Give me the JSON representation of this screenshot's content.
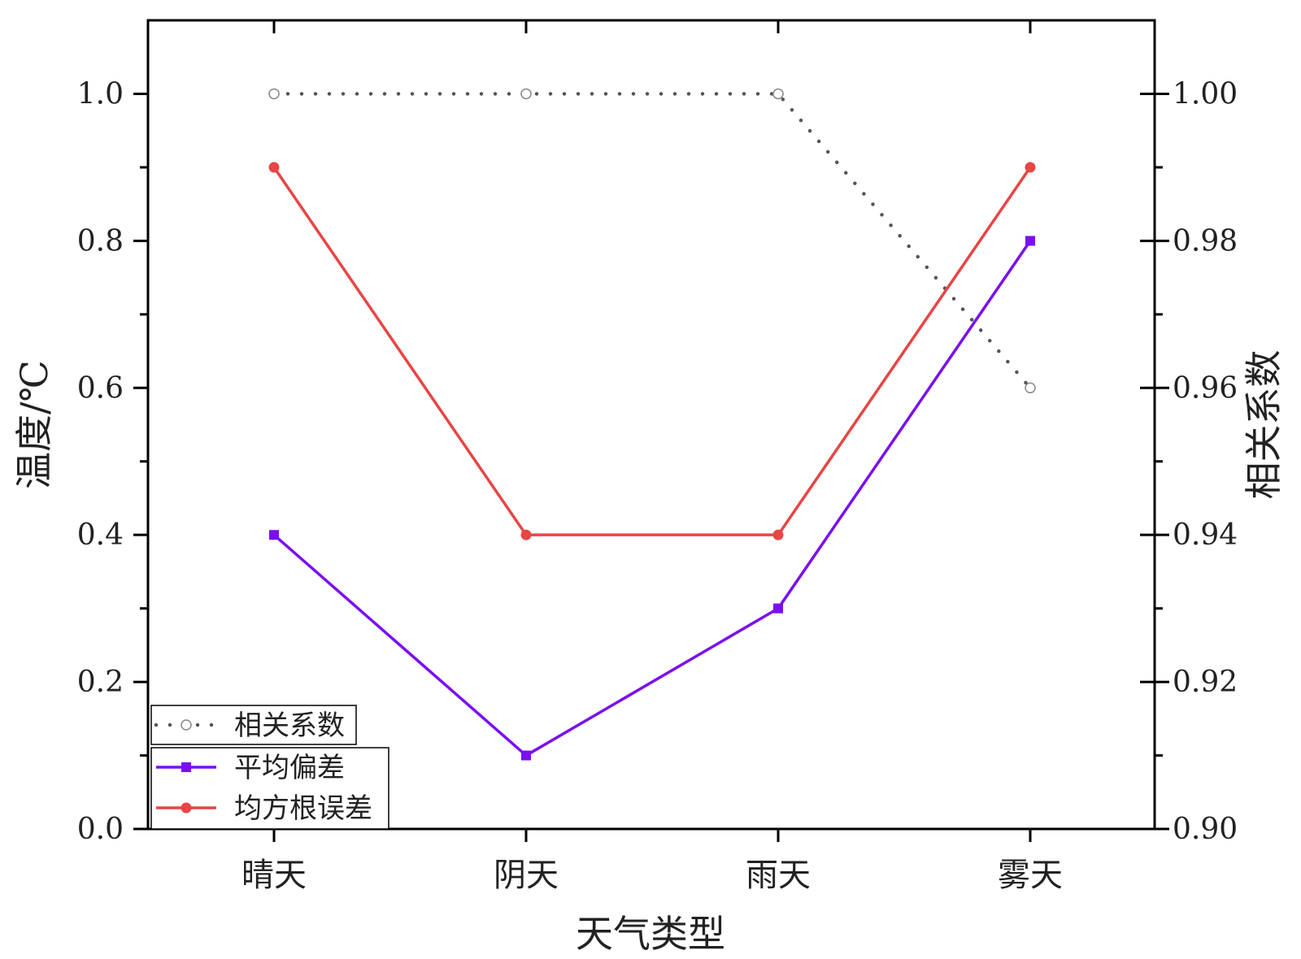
{
  "chart_data": {
    "type": "line",
    "categories": [
      "晴天",
      "阴天",
      "雨天",
      "雾天"
    ],
    "xlabel": "天气类型",
    "ylabel_left": "温度/℃",
    "ylabel_right": "相关系数",
    "ylim_left": [
      0,
      1.1
    ],
    "ylim_right": [
      0.9,
      1.01
    ],
    "yticks_left": [
      "0.0",
      "0.2",
      "0.4",
      "0.6",
      "0.8",
      "1.0"
    ],
    "yticks_right": [
      "0.90",
      "0.92",
      "0.94",
      "0.96",
      "0.98",
      "1.00"
    ],
    "legend_position": "bottom-left",
    "grid": false,
    "series": [
      {
        "name": "相关系数",
        "axis": "right",
        "values": [
          1.0,
          1.0,
          1.0,
          0.96
        ],
        "color": "#555555",
        "marker": "open-circle",
        "line": "dotted"
      },
      {
        "name": "平均偏差",
        "axis": "left",
        "values": [
          0.4,
          0.1,
          0.3,
          0.8
        ],
        "color": "#7b0ff0",
        "marker": "square",
        "line": "solid"
      },
      {
        "name": "均方根误差",
        "axis": "left",
        "values": [
          0.9,
          0.4,
          0.4,
          0.9
        ],
        "color": "#e84545",
        "marker": "circle",
        "line": "solid"
      }
    ]
  }
}
